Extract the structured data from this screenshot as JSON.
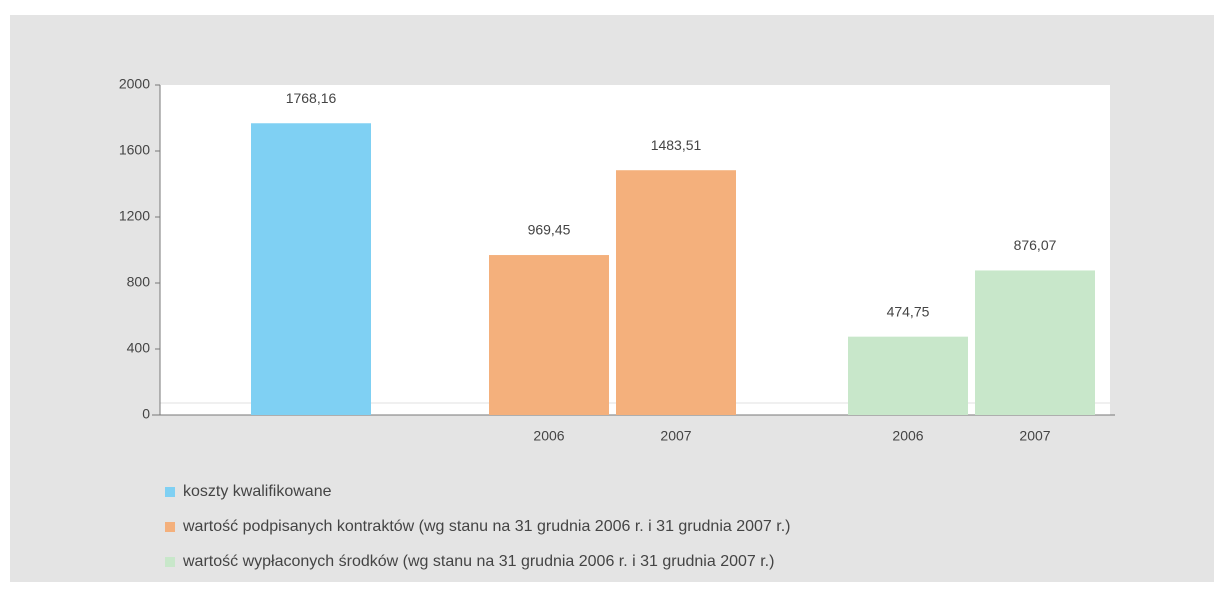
{
  "chart_data": {
    "type": "bar",
    "categories": [
      null,
      "2006",
      "2007",
      "2006",
      "2007"
    ],
    "series": [
      {
        "name": "koszty kwalifikowane",
        "color": "#7fd0f3",
        "values": [
          1768.16,
          null,
          null,
          null,
          null
        ],
        "value_labels": [
          "1768,16",
          null,
          null,
          null,
          null
        ]
      },
      {
        "name": "wartość podpisanych kontraktów (wg stanu na  31 grudnia 2006  r. i  31 grudnia 2007 r.)",
        "color": "#f4b07c",
        "values": [
          null,
          969.45,
          1483.51,
          null,
          null
        ],
        "value_labels": [
          null,
          "969,45",
          "1483,51",
          null,
          null
        ]
      },
      {
        "name": "wartość wypłaconych środków (wg stanu na  31 grudnia 2006 r. i 31 grudnia 2007 r.)",
        "color": "#c8e7ca",
        "values": [
          null,
          null,
          null,
          474.75,
          876.07
        ],
        "value_labels": [
          null,
          null,
          null,
          "474,75",
          "876,07"
        ]
      }
    ],
    "ylim": [
      0,
      2000
    ],
    "yticks": [
      0,
      400,
      800,
      1200,
      1600,
      2000
    ],
    "grid": false
  }
}
